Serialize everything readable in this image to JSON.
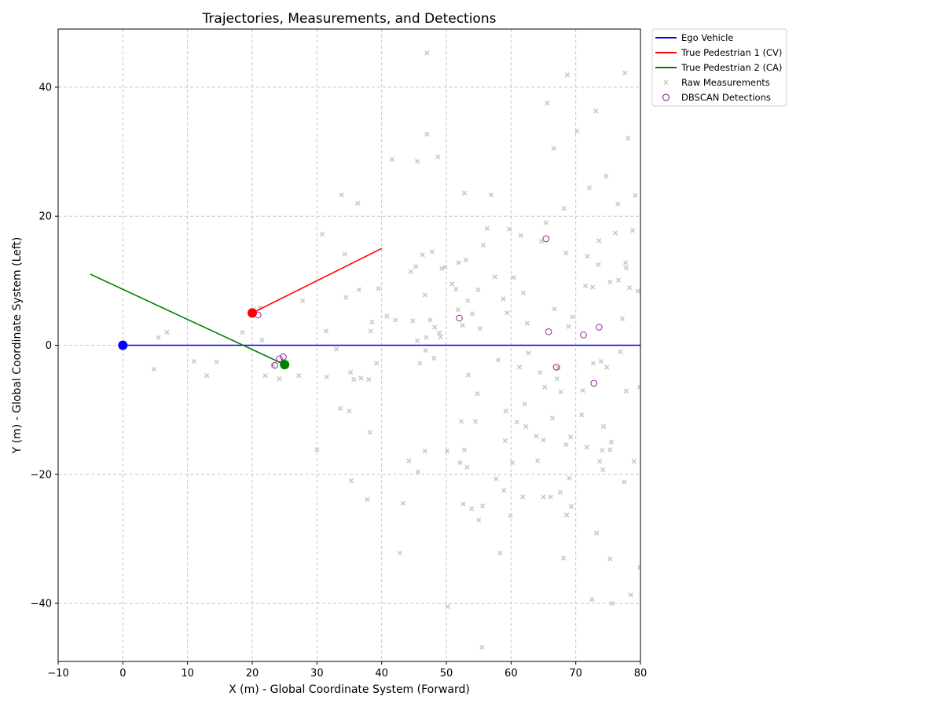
{
  "chart_data": {
    "type": "scatter",
    "title": "Trajectories, Measurements, and Detections",
    "xlabel": "X (m) - Global Coordinate System (Forward)",
    "ylabel": "Y (m) - Global Coordinate System (Left)",
    "xlim": [
      -10,
      80
    ],
    "ylim": [
      -49,
      49
    ],
    "xticks": [
      -10,
      0,
      10,
      20,
      30,
      40,
      50,
      60,
      70,
      80
    ],
    "yticks": [
      -40,
      -20,
      0,
      20,
      40
    ],
    "grid": true,
    "legend_position": "outside-top-right",
    "series": [
      {
        "name": "Ego Vehicle",
        "kind": "line",
        "color": "#0000ff",
        "points": [
          [
            0,
            0
          ],
          [
            80,
            0
          ]
        ],
        "current": [
          0,
          0
        ]
      },
      {
        "name": "True Pedestrian 1 (CV)",
        "kind": "line",
        "color": "#ff0000",
        "points": [
          [
            20,
            5
          ],
          [
            40,
            15
          ]
        ],
        "current": [
          20,
          5
        ]
      },
      {
        "name": "True Pedestrian 2 (CA)",
        "kind": "line",
        "color": "#008000",
        "points": [
          [
            -5,
            11
          ],
          [
            25,
            -3
          ]
        ],
        "current": [
          25,
          -3
        ]
      },
      {
        "name": "Raw Measurements",
        "kind": "marker-x",
        "color": "#c8c8c8",
        "points": [
          [
            5.5,
            1.2
          ],
          [
            6.8,
            2.0
          ],
          [
            4.8,
            -3.7
          ],
          [
            11,
            -2.5
          ],
          [
            13,
            -4.7
          ],
          [
            14.5,
            -2.6
          ],
          [
            18.5,
            2
          ],
          [
            20.2,
            5.5
          ],
          [
            21.2,
            5.8
          ],
          [
            21.5,
            0.8
          ],
          [
            22,
            -4.7
          ],
          [
            23.2,
            -3.1
          ],
          [
            24.2,
            -5.2
          ],
          [
            27.2,
            -4.7
          ],
          [
            27.8,
            6.9
          ],
          [
            30,
            -16.2
          ],
          [
            30.8,
            17.2
          ],
          [
            31.5,
            -4.9
          ],
          [
            31.4,
            2.2
          ],
          [
            33,
            -0.6
          ],
          [
            33.6,
            -9.8
          ],
          [
            33.8,
            23.3
          ],
          [
            34.3,
            14.1
          ],
          [
            34.5,
            7.4
          ],
          [
            35,
            -10.2
          ],
          [
            35.2,
            -4.2
          ],
          [
            35.3,
            -21
          ],
          [
            35.7,
            -5.3
          ],
          [
            36.3,
            22
          ],
          [
            36.5,
            8.6
          ],
          [
            36.8,
            -5.1
          ],
          [
            37.8,
            -23.9
          ],
          [
            38,
            -5.3
          ],
          [
            38.2,
            -13.5
          ],
          [
            38.3,
            2.2
          ],
          [
            38.5,
            3.6
          ],
          [
            39.2,
            -2.8
          ],
          [
            39.5,
            8.8
          ],
          [
            40.8,
            4.5
          ],
          [
            41.6,
            28.8
          ],
          [
            42.1,
            3.9
          ],
          [
            42.8,
            -32.2
          ],
          [
            43.3,
            -24.5
          ],
          [
            44.2,
            -17.9
          ],
          [
            44.5,
            11.4
          ],
          [
            44.8,
            3.8
          ],
          [
            45.3,
            12.2
          ],
          [
            45.5,
            0.7
          ],
          [
            45.5,
            28.5
          ],
          [
            45.6,
            -19.6
          ],
          [
            45.9,
            -2.8
          ],
          [
            46.3,
            14
          ],
          [
            46.7,
            7.8
          ],
          [
            46.7,
            -16.4
          ],
          [
            46.8,
            -0.8
          ],
          [
            46.9,
            1.2
          ],
          [
            47,
            45.3
          ],
          [
            47,
            32.7
          ],
          [
            47.5,
            3.9
          ],
          [
            47.8,
            14.5
          ],
          [
            48.1,
            -2
          ],
          [
            48.2,
            2.8
          ],
          [
            48.7,
            29.2
          ],
          [
            48.9,
            1.9
          ],
          [
            49.1,
            1.3
          ],
          [
            49.3,
            11.9
          ],
          [
            49.8,
            12.1
          ],
          [
            50.1,
            -16.4
          ],
          [
            50.2,
            -40.5
          ],
          [
            50.9,
            9.5
          ],
          [
            51.5,
            8.7
          ],
          [
            51.8,
            5.5
          ],
          [
            51.9,
            12.8
          ],
          [
            52.1,
            -18.2
          ],
          [
            52.3,
            -11.8
          ],
          [
            52.5,
            3.1
          ],
          [
            52.6,
            -24.6
          ],
          [
            52.8,
            23.6
          ],
          [
            52.8,
            -16.2
          ],
          [
            53,
            13.2
          ],
          [
            53.2,
            -18.9
          ],
          [
            53.3,
            6.9
          ],
          [
            53.4,
            -4.6
          ],
          [
            53.9,
            -25.3
          ],
          [
            54,
            4.9
          ],
          [
            54.5,
            -11.8
          ],
          [
            54.8,
            -7.5
          ],
          [
            54.9,
            8.6
          ],
          [
            55,
            -27.1
          ],
          [
            55.2,
            2.6
          ],
          [
            55.5,
            -46.8
          ],
          [
            55.6,
            -24.9
          ],
          [
            55.7,
            15.5
          ],
          [
            56.3,
            18.1
          ],
          [
            56.9,
            23.3
          ],
          [
            57.5,
            10.6
          ],
          [
            57.7,
            -20.7
          ],
          [
            58,
            -2.3
          ],
          [
            58.3,
            -32.2
          ],
          [
            58.8,
            7.2
          ],
          [
            58.9,
            -22.5
          ],
          [
            59.1,
            -14.8
          ],
          [
            59.2,
            -10.2
          ],
          [
            59.4,
            5
          ],
          [
            59.7,
            18
          ],
          [
            59.9,
            -26.4
          ],
          [
            60.2,
            -18.2
          ],
          [
            60.4,
            10.5
          ],
          [
            60.9,
            -11.9
          ],
          [
            61.3,
            -3.4
          ],
          [
            61.5,
            17
          ],
          [
            61.8,
            -23.5
          ],
          [
            61.9,
            8.1
          ],
          [
            62.1,
            -9.1
          ],
          [
            62.3,
            -12.6
          ],
          [
            62.5,
            3.4
          ],
          [
            62.7,
            -1.2
          ],
          [
            63.9,
            -14.1
          ],
          [
            64.1,
            -17.9
          ],
          [
            64.5,
            -4.2
          ],
          [
            64.7,
            16.1
          ],
          [
            65,
            -23.5
          ],
          [
            65,
            -14.7
          ],
          [
            65.2,
            -6.5
          ],
          [
            65.4,
            19
          ],
          [
            65.6,
            37.5
          ],
          [
            66.1,
            -23.5
          ],
          [
            66.4,
            -11.3
          ],
          [
            66.6,
            30.5
          ],
          [
            66.7,
            5.6
          ],
          [
            67.1,
            -5.2
          ],
          [
            67.3,
            -3.5
          ],
          [
            67.6,
            -22.8
          ],
          [
            67.7,
            -7.2
          ],
          [
            68.1,
            -33
          ],
          [
            68.2,
            21.2
          ],
          [
            68.5,
            14.3
          ],
          [
            68.5,
            -15.4
          ],
          [
            68.6,
            -26.3
          ],
          [
            68.7,
            41.9
          ],
          [
            68.9,
            2.9
          ],
          [
            69,
            -20.6
          ],
          [
            69.2,
            -14.2
          ],
          [
            69.3,
            -25
          ],
          [
            69.5,
            4.4
          ],
          [
            70.2,
            33.2
          ],
          [
            70.9,
            -10.8
          ],
          [
            71.1,
            -7
          ],
          [
            71.5,
            9.2
          ],
          [
            71.7,
            -15.8
          ],
          [
            71.8,
            13.8
          ],
          [
            72.1,
            24.4
          ],
          [
            72.5,
            -39.4
          ],
          [
            72.6,
            9
          ],
          [
            72.7,
            -2.8
          ],
          [
            73.1,
            36.3
          ],
          [
            73.2,
            -29.1
          ],
          [
            73.5,
            12.5
          ],
          [
            73.6,
            16.2
          ],
          [
            73.7,
            -18
          ],
          [
            73.9,
            -2.5
          ],
          [
            74.1,
            -16.3
          ],
          [
            74.2,
            -19.3
          ],
          [
            74.3,
            -12.6
          ],
          [
            74.7,
            26.2
          ],
          [
            74.8,
            -3.4
          ],
          [
            75.3,
            -33.1
          ],
          [
            75.3,
            -16.2
          ],
          [
            75.3,
            9.8
          ],
          [
            75.5,
            -15
          ],
          [
            75.6,
            -40
          ],
          [
            76.1,
            17.4
          ],
          [
            76.5,
            21.9
          ],
          [
            76.6,
            10.1
          ],
          [
            76.9,
            -1
          ],
          [
            77.2,
            4.1
          ],
          [
            77.5,
            -21.2
          ],
          [
            77.6,
            42.2
          ],
          [
            77.7,
            12.8
          ],
          [
            77.8,
            -7.1
          ],
          [
            77.8,
            12
          ],
          [
            78.1,
            32.1
          ],
          [
            78.3,
            8.9
          ],
          [
            78.5,
            -38.7
          ],
          [
            78.8,
            17.8
          ],
          [
            79,
            -18
          ],
          [
            79.2,
            23.2
          ],
          [
            79.6,
            8.4
          ],
          [
            79.9,
            -6.5
          ],
          [
            79.9,
            -34.4
          ]
        ]
      },
      {
        "name": "DBSCAN Detections",
        "kind": "marker-circle-open",
        "color": "#800080",
        "points": [
          [
            20.9,
            4.7
          ],
          [
            23.5,
            -3.1
          ],
          [
            24.2,
            -2.1
          ],
          [
            24.8,
            -1.8
          ],
          [
            52,
            4.2
          ],
          [
            65.4,
            16.5
          ],
          [
            65.8,
            2.1
          ],
          [
            67,
            -3.4
          ],
          [
            71.2,
            1.6
          ],
          [
            72.8,
            -5.9
          ],
          [
            73.6,
            2.8
          ]
        ]
      }
    ]
  }
}
